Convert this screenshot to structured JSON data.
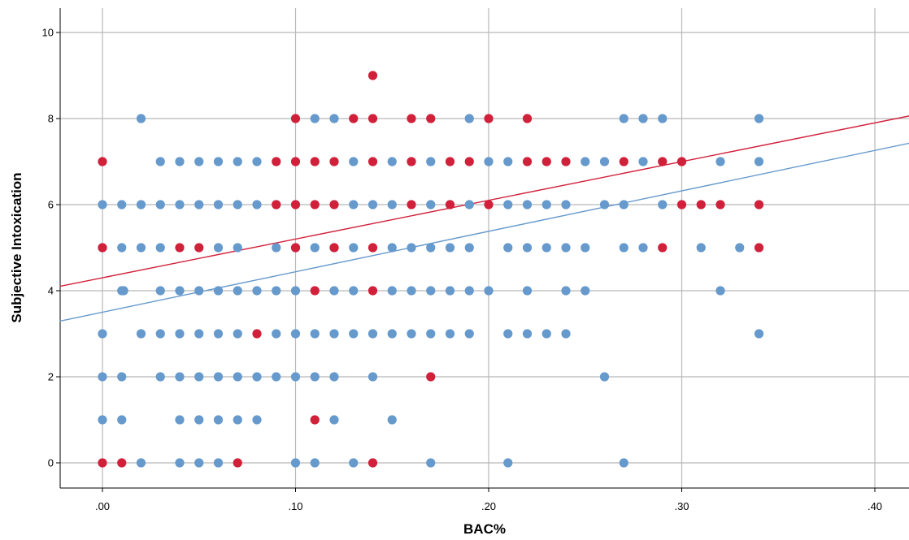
{
  "chart_data": {
    "type": "scatter",
    "title": "",
    "xlabel": "BAC%",
    "ylabel": "Subjective Intoxication",
    "xlim": [
      -0.022,
      0.42
    ],
    "ylim": [
      -0.55,
      10.55
    ],
    "x_ticks": [
      0.0,
      0.1,
      0.2,
      0.3,
      0.4
    ],
    "x_tick_labels": [
      ".00",
      ".10",
      ".20",
      ".30",
      ".40"
    ],
    "y_ticks": [
      0,
      2,
      4,
      6,
      8,
      10
    ],
    "y_tick_labels": [
      "0",
      "2",
      "4",
      "6",
      "8",
      "10"
    ],
    "grid": true,
    "legend": "none",
    "series": [
      {
        "color": "#6699cc",
        "fit_line": {
          "intercept": 3.5,
          "slope": 9.4
        },
        "points": [
          [
            0.0,
            6
          ],
          [
            0.0,
            5
          ],
          [
            0.0,
            3
          ],
          [
            0.0,
            2
          ],
          [
            0.0,
            1
          ],
          [
            0.01,
            6
          ],
          [
            0.01,
            5
          ],
          [
            0.01,
            4
          ],
          [
            0.011,
            4
          ],
          [
            0.01,
            2
          ],
          [
            0.01,
            1
          ],
          [
            0.02,
            8
          ],
          [
            0.02,
            6
          ],
          [
            0.02,
            5
          ],
          [
            0.02,
            3
          ],
          [
            0.02,
            0
          ],
          [
            0.03,
            7
          ],
          [
            0.03,
            6
          ],
          [
            0.03,
            5
          ],
          [
            0.03,
            4
          ],
          [
            0.03,
            3
          ],
          [
            0.03,
            2
          ],
          [
            0.04,
            7
          ],
          [
            0.04,
            6
          ],
          [
            0.04,
            4
          ],
          [
            0.04,
            3
          ],
          [
            0.04,
            2
          ],
          [
            0.04,
            1
          ],
          [
            0.04,
            0
          ],
          [
            0.05,
            7
          ],
          [
            0.05,
            6
          ],
          [
            0.05,
            4
          ],
          [
            0.05,
            3
          ],
          [
            0.05,
            2
          ],
          [
            0.05,
            1
          ],
          [
            0.05,
            0
          ],
          [
            0.06,
            7
          ],
          [
            0.06,
            6
          ],
          [
            0.06,
            5
          ],
          [
            0.06,
            4
          ],
          [
            0.06,
            3
          ],
          [
            0.06,
            2
          ],
          [
            0.06,
            1
          ],
          [
            0.06,
            0
          ],
          [
            0.07,
            7
          ],
          [
            0.07,
            6
          ],
          [
            0.07,
            5
          ],
          [
            0.07,
            4
          ],
          [
            0.07,
            3
          ],
          [
            0.07,
            2
          ],
          [
            0.07,
            1
          ],
          [
            0.08,
            7
          ],
          [
            0.08,
            6
          ],
          [
            0.08,
            4
          ],
          [
            0.08,
            2
          ],
          [
            0.08,
            1
          ],
          [
            0.09,
            6
          ],
          [
            0.09,
            5
          ],
          [
            0.09,
            4
          ],
          [
            0.09,
            3
          ],
          [
            0.09,
            2
          ],
          [
            0.1,
            5
          ],
          [
            0.1,
            4
          ],
          [
            0.1,
            3
          ],
          [
            0.1,
            2
          ],
          [
            0.1,
            0
          ],
          [
            0.11,
            8
          ],
          [
            0.11,
            5
          ],
          [
            0.11,
            3
          ],
          [
            0.11,
            2
          ],
          [
            0.11,
            0
          ],
          [
            0.12,
            8
          ],
          [
            0.12,
            5
          ],
          [
            0.12,
            4
          ],
          [
            0.12,
            3
          ],
          [
            0.12,
            2
          ],
          [
            0.12,
            1
          ],
          [
            0.13,
            7
          ],
          [
            0.13,
            6
          ],
          [
            0.13,
            5
          ],
          [
            0.13,
            4
          ],
          [
            0.13,
            3
          ],
          [
            0.13,
            0
          ],
          [
            0.14,
            6
          ],
          [
            0.14,
            3
          ],
          [
            0.14,
            2
          ],
          [
            0.15,
            7
          ],
          [
            0.15,
            6
          ],
          [
            0.15,
            5
          ],
          [
            0.15,
            4
          ],
          [
            0.15,
            3
          ],
          [
            0.15,
            1
          ],
          [
            0.16,
            7
          ],
          [
            0.16,
            5
          ],
          [
            0.16,
            4
          ],
          [
            0.16,
            3
          ],
          [
            0.17,
            7
          ],
          [
            0.17,
            6
          ],
          [
            0.17,
            5
          ],
          [
            0.17,
            4
          ],
          [
            0.17,
            3
          ],
          [
            0.17,
            0
          ],
          [
            0.18,
            6
          ],
          [
            0.18,
            5
          ],
          [
            0.18,
            4
          ],
          [
            0.18,
            3
          ],
          [
            0.19,
            8
          ],
          [
            0.19,
            6
          ],
          [
            0.19,
            5
          ],
          [
            0.19,
            4
          ],
          [
            0.19,
            3
          ],
          [
            0.2,
            7
          ],
          [
            0.2,
            4
          ],
          [
            0.21,
            7
          ],
          [
            0.21,
            6
          ],
          [
            0.21,
            5
          ],
          [
            0.21,
            3
          ],
          [
            0.21,
            0
          ],
          [
            0.22,
            6
          ],
          [
            0.22,
            5
          ],
          [
            0.22,
            4
          ],
          [
            0.22,
            3
          ],
          [
            0.23,
            6
          ],
          [
            0.23,
            5
          ],
          [
            0.23,
            3
          ],
          [
            0.24,
            6
          ],
          [
            0.24,
            5
          ],
          [
            0.24,
            4
          ],
          [
            0.24,
            3
          ],
          [
            0.25,
            7
          ],
          [
            0.25,
            5
          ],
          [
            0.25,
            4
          ],
          [
            0.26,
            7
          ],
          [
            0.26,
            6
          ],
          [
            0.26,
            2
          ],
          [
            0.27,
            8
          ],
          [
            0.27,
            6
          ],
          [
            0.27,
            5
          ],
          [
            0.27,
            0
          ],
          [
            0.28,
            8
          ],
          [
            0.28,
            7
          ],
          [
            0.28,
            5
          ],
          [
            0.29,
            8
          ],
          [
            0.29,
            6
          ],
          [
            0.31,
            5
          ],
          [
            0.32,
            7
          ],
          [
            0.32,
            4
          ],
          [
            0.33,
            5
          ],
          [
            0.34,
            8
          ],
          [
            0.34,
            7
          ],
          [
            0.34,
            3
          ]
        ]
      },
      {
        "color": "#d1203a",
        "fit_line": {
          "intercept": 4.3,
          "slope": 9.0
        },
        "points": [
          [
            0.0,
            7
          ],
          [
            0.0,
            5
          ],
          [
            0.0,
            0
          ],
          [
            0.01,
            0
          ],
          [
            0.04,
            5
          ],
          [
            0.05,
            5
          ],
          [
            0.07,
            0
          ],
          [
            0.08,
            3
          ],
          [
            0.09,
            7
          ],
          [
            0.09,
            6
          ],
          [
            0.1,
            8
          ],
          [
            0.1,
            7
          ],
          [
            0.1,
            6
          ],
          [
            0.1,
            5
          ],
          [
            0.11,
            7
          ],
          [
            0.11,
            6
          ],
          [
            0.11,
            4
          ],
          [
            0.11,
            1
          ],
          [
            0.12,
            7
          ],
          [
            0.12,
            6
          ],
          [
            0.12,
            5
          ],
          [
            0.13,
            8
          ],
          [
            0.14,
            9
          ],
          [
            0.14,
            8
          ],
          [
            0.14,
            7
          ],
          [
            0.14,
            5
          ],
          [
            0.14,
            4
          ],
          [
            0.14,
            0
          ],
          [
            0.16,
            8
          ],
          [
            0.16,
            7
          ],
          [
            0.16,
            6
          ],
          [
            0.17,
            8
          ],
          [
            0.17,
            2
          ],
          [
            0.18,
            7
          ],
          [
            0.18,
            6
          ],
          [
            0.19,
            7
          ],
          [
            0.2,
            8
          ],
          [
            0.2,
            6
          ],
          [
            0.22,
            8
          ],
          [
            0.22,
            7
          ],
          [
            0.23,
            7
          ],
          [
            0.24,
            7
          ],
          [
            0.27,
            7
          ],
          [
            0.29,
            7
          ],
          [
            0.29,
            5
          ],
          [
            0.3,
            7
          ],
          [
            0.3,
            6
          ],
          [
            0.31,
            6
          ],
          [
            0.32,
            6
          ],
          [
            0.34,
            6
          ],
          [
            0.34,
            5
          ]
        ]
      }
    ]
  }
}
